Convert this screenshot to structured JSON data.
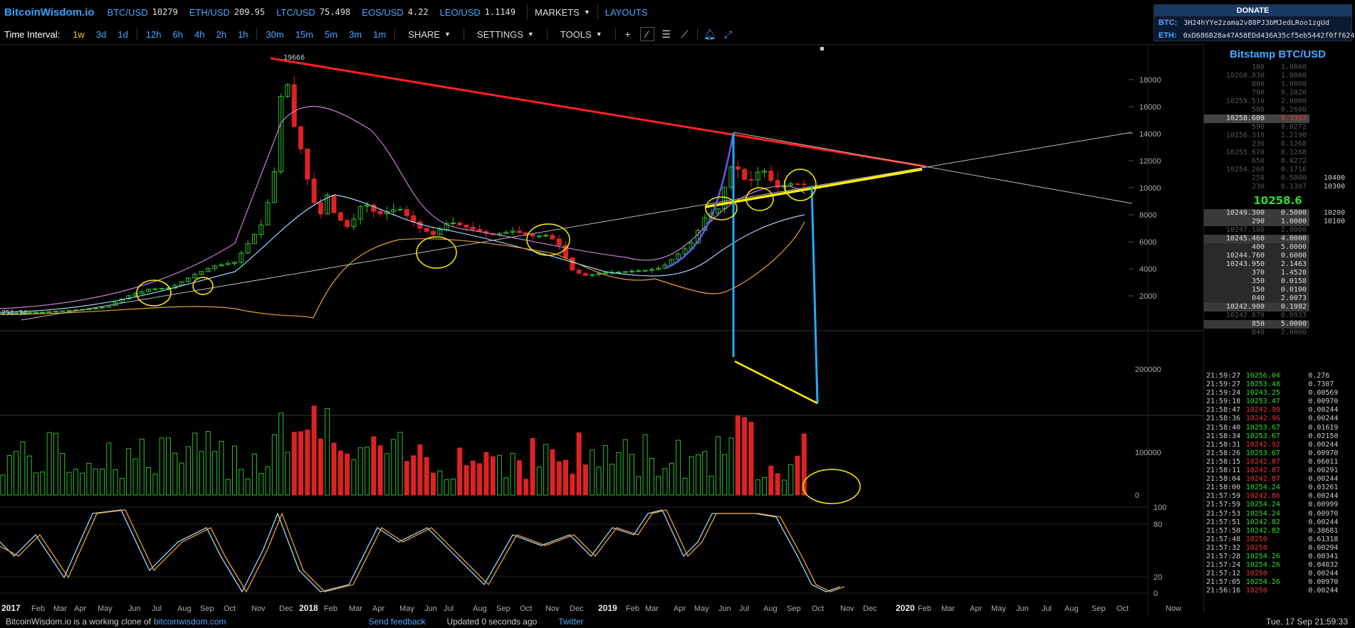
{
  "topbar": {
    "brand": "BitcoinWisdom.io",
    "tickers": [
      {
        "symbol": "BTC/USD",
        "value": "10279"
      },
      {
        "symbol": "ETH/USD",
        "value": "209.95"
      },
      {
        "symbol": "LTC/USD",
        "value": "75.498"
      },
      {
        "symbol": "EOS/USD",
        "value": "4.22"
      },
      {
        "symbol": "LEO/USD",
        "value": "1.1149"
      }
    ],
    "markets_label": "MARKETS",
    "layouts_label": "LAYOUTS"
  },
  "donate": {
    "title": "DONATE",
    "btc_label": "BTC:",
    "btc_address": "3H24hYYe2zama2v88PJ3bMJedLRoo1zgUd",
    "eth_label": "ETH:",
    "eth_address": "0xD686B28a47A58EDd436A35cf5eb5442f0ff624"
  },
  "toolbar": {
    "interval_label": "Time Interval:",
    "intervals": [
      "1w",
      "3d",
      "1d",
      "12h",
      "6h",
      "4h",
      "2h",
      "1h",
      "30m",
      "15m",
      "5m",
      "3m",
      "1m"
    ],
    "active_interval": "1w",
    "share_label": "SHARE",
    "settings_label": "SETTINGS",
    "tools_label": "TOOLS",
    "icons": [
      "crosshair-icon",
      "line-draw-icon",
      "horizontal-lines-icon",
      "fan-lines-icon",
      "alarm-icon",
      "fullscreen-icon"
    ]
  },
  "chart": {
    "price_axis": [
      "18000",
      "16000",
      "14000",
      "12000",
      "10000",
      "8000",
      "6000",
      "4000",
      "2000"
    ],
    "volume_axis": [
      "200000",
      "100000",
      "0"
    ],
    "stoch_axis": [
      "100",
      "80",
      "20",
      "0"
    ],
    "peak_label": "19666",
    "low_label": "751.34",
    "right_labels": [
      "10400",
      "10300",
      "10200",
      "10100"
    ],
    "x_axis": [
      "2017",
      "Feb",
      "Mar",
      "Apr",
      "May",
      "Jun",
      "Jul",
      "Aug",
      "Sep",
      "Oct",
      "Nov",
      "Dec",
      "2018",
      "Feb",
      "Mar",
      "Apr",
      "May",
      "Jun",
      "Jul",
      "Aug",
      "Sep",
      "Oct",
      "Nov",
      "Dec",
      "2019",
      "Feb",
      "Mar",
      "Apr",
      "May",
      "Jun",
      "Jul",
      "Aug",
      "Sep",
      "Oct",
      "Nov",
      "Dec",
      "2020",
      "Feb",
      "Mar",
      "Apr",
      "May",
      "Jun",
      "Jul",
      "Aug",
      "Sep",
      "Oct",
      "Now"
    ],
    "colors": {
      "up": "#2cc02c",
      "down": "#dd2222",
      "resistance": "#ff2222",
      "support": "#ffee00",
      "drop": "#22aaff",
      "accent": "#4aa8ff"
    }
  },
  "orderbook": {
    "title": "Bitstamp BTC/USD",
    "asks": [
      {
        "price": "100",
        "amount": "1.0000"
      },
      {
        "price": "10260.830",
        "amount": "1.0000"
      },
      {
        "price": "800",
        "amount": "1.0000"
      },
      {
        "price": "790",
        "amount": "0.1020"
      },
      {
        "price": "10259.510",
        "amount": "2.0000"
      },
      {
        "price": "500",
        "amount": "0.2600"
      },
      {
        "price": "10258.600",
        "amount": "0.3392",
        "hl": true
      },
      {
        "price": "590",
        "amount": "0.0272"
      },
      {
        "price": "10256.310",
        "amount": "1.2190"
      },
      {
        "price": "230",
        "amount": "0.1268"
      },
      {
        "price": "10255.670",
        "amount": "0.1268"
      },
      {
        "price": "650",
        "amount": "0.0272"
      },
      {
        "price": "10254.260",
        "amount": "0.1716"
      },
      {
        "price": "250",
        "amount": "0.5000"
      },
      {
        "price": "230",
        "amount": "0.1307"
      }
    ],
    "last_price": "10258.6",
    "bids": [
      {
        "price": "10249.300",
        "amount": "0.5000",
        "cls": "dark"
      },
      {
        "price": "290",
        "amount": "1.0000",
        "cls": "dark"
      },
      {
        "price": "10247.100",
        "amount": "2.0000",
        "cls": "dim"
      },
      {
        "price": "10245.460",
        "amount": "4.0000",
        "cls": "dark"
      },
      {
        "price": "400",
        "amount": "5.0000",
        "cls": ""
      },
      {
        "price": "10244.760",
        "amount": "0.6000",
        "cls": ""
      },
      {
        "price": "10243.950",
        "amount": "2.1463",
        "cls": ""
      },
      {
        "price": "370",
        "amount": "1.4520",
        "cls": ""
      },
      {
        "price": "350",
        "amount": "0.0158",
        "cls": ""
      },
      {
        "price": "150",
        "amount": "0.0100",
        "cls": ""
      },
      {
        "price": "040",
        "amount": "2.0073",
        "cls": ""
      },
      {
        "price": "10242.900",
        "amount": "0.1982",
        "cls": "dark"
      },
      {
        "price": "10242.870",
        "amount": "0.0933",
        "cls": "dim"
      },
      {
        "price": "850",
        "amount": "5.0000",
        "cls": "dark"
      },
      {
        "price": "840",
        "amount": "2.0000",
        "cls": "dim"
      }
    ]
  },
  "trades": [
    {
      "time": "21:59:27",
      "price": "10256.04",
      "amount": "0.276",
      "dir": "up"
    },
    {
      "time": "21:59:27",
      "price": "10253.48",
      "amount": "0.7307",
      "dir": "up"
    },
    {
      "time": "21:59:24",
      "price": "10243.25",
      "amount": "0.00569",
      "dir": "up"
    },
    {
      "time": "21:59:18",
      "price": "10253.47",
      "amount": "0.00970",
      "dir": "up"
    },
    {
      "time": "21:58:47",
      "price": "10242.99",
      "amount": "0.00244",
      "dir": "dn"
    },
    {
      "time": "21:58:36",
      "price": "10242.96",
      "amount": "0.00244",
      "dir": "dn"
    },
    {
      "time": "21:58:40",
      "price": "10253.67",
      "amount": "0.01619",
      "dir": "up"
    },
    {
      "time": "21:58:34",
      "price": "10253.67",
      "amount": "0.02150",
      "dir": "up"
    },
    {
      "time": "21:58:31",
      "price": "10242.92",
      "amount": "0.00244",
      "dir": "dn"
    },
    {
      "time": "21:58:26",
      "price": "10253.67",
      "amount": "0.00970",
      "dir": "up"
    },
    {
      "time": "21:58:15",
      "price": "10242.87",
      "amount": "0.06011",
      "dir": "dn"
    },
    {
      "time": "21:58:11",
      "price": "10242.87",
      "amount": "0.00291",
      "dir": "dn"
    },
    {
      "time": "21:58:04",
      "price": "10242.87",
      "amount": "0.00244",
      "dir": "dn"
    },
    {
      "time": "21:58:00",
      "price": "10254.24",
      "amount": "0.03261",
      "dir": "up"
    },
    {
      "time": "21:57:59",
      "price": "10242.86",
      "amount": "0.00244",
      "dir": "dn"
    },
    {
      "time": "21:57:59",
      "price": "10254.24",
      "amount": "0.00999",
      "dir": "up"
    },
    {
      "time": "21:57:53",
      "price": "10254.24",
      "amount": "0.00970",
      "dir": "up"
    },
    {
      "time": "21:57:51",
      "price": "10242.82",
      "amount": "0.00244",
      "dir": "up"
    },
    {
      "time": "21:57:50",
      "price": "10242.82",
      "amount": "0.38681",
      "dir": "up"
    },
    {
      "time": "21:57:48",
      "price": "10250",
      "amount": "0.61318",
      "dir": "dn"
    },
    {
      "time": "21:57:32",
      "price": "10250",
      "amount": "0.00294",
      "dir": "dn"
    },
    {
      "time": "21:57:28",
      "price": "10254.26",
      "amount": "0.00341",
      "dir": "up"
    },
    {
      "time": "21:57:24",
      "price": "10254.26",
      "amount": "0.04032",
      "dir": "up"
    },
    {
      "time": "21:57:12",
      "price": "10250",
      "amount": "0.00244",
      "dir": "dn"
    },
    {
      "time": "21:57:05",
      "price": "10254.26",
      "amount": "0.00970",
      "dir": "up"
    },
    {
      "time": "21:56:16",
      "price": "10250",
      "amount": "0.00244",
      "dir": "dn"
    }
  ],
  "footer": {
    "clone_text": "BitcoinWisdom.io is a working clone of",
    "clone_link": "bitcoinwisdom.com",
    "feedback": "Send feedback",
    "updated": "Updated 0 seconds ago",
    "twitter": "Twitter",
    "datetime": "Tue, 17 Sep 21:59:33"
  }
}
